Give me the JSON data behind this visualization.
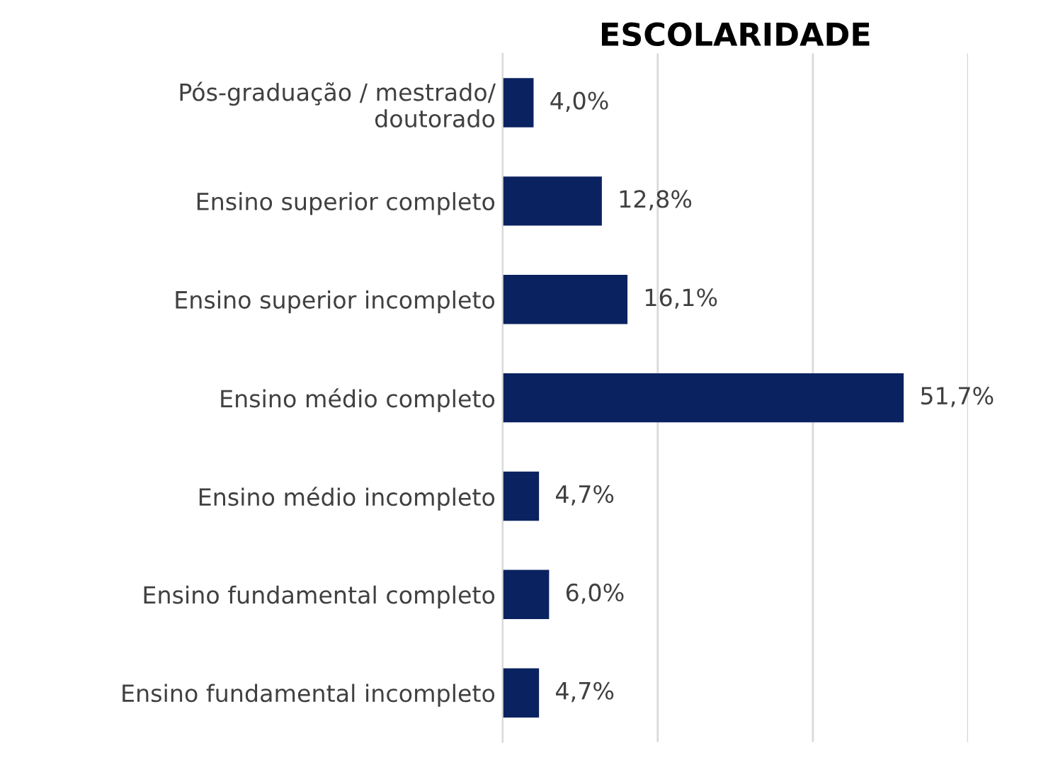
{
  "chart_data": {
    "type": "bar",
    "orientation": "horizontal",
    "title": "ESCOLARIDADE",
    "categories": [
      "Pós-graduação / mestrado/\ndoutorado",
      "Ensino superior completo",
      "Ensino superior incompleto",
      "Ensino médio completo",
      "Ensino médio incompleto",
      "Ensino fundamental completo",
      "Ensino fundamental incompleto"
    ],
    "values": [
      4.0,
      12.8,
      16.1,
      51.7,
      4.7,
      6.0,
      4.7
    ],
    "value_labels": [
      "4,0%",
      "12,8%",
      "16,1%",
      "51,7%",
      "4,7%",
      "6,0%",
      "4,7%"
    ],
    "color": "#0b2260",
    "xlim": [
      0,
      60
    ],
    "xticks": [
      {
        "value": 0,
        "label": null
      },
      {
        "value": 20,
        "label": null
      },
      {
        "value": 40,
        "label": null
      },
      {
        "value": 60,
        "label": null
      }
    ],
    "grid": "x",
    "tick_labels": "y",
    "legend": false
  }
}
